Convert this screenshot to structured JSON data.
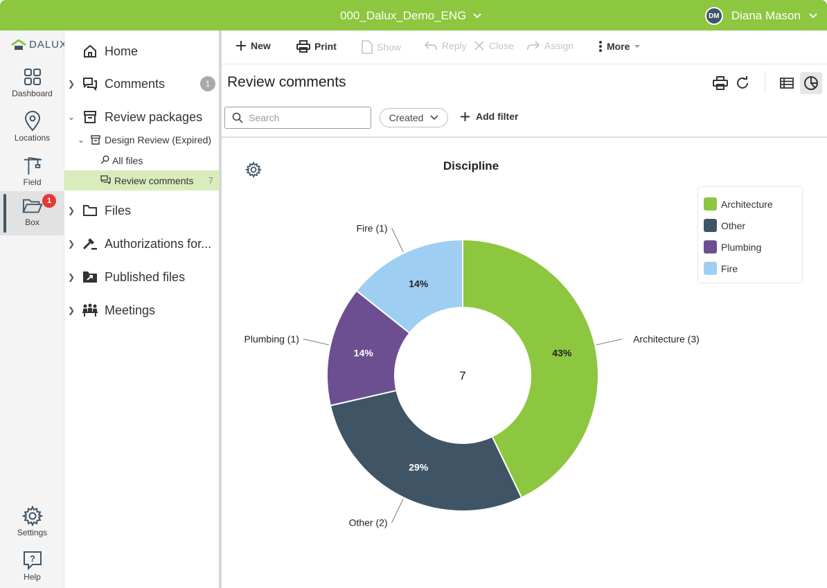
{
  "topbar": {
    "project": "000_Dalux_Demo_ENG",
    "user_name": "Diana Mason",
    "user_initials": "DM"
  },
  "rail": {
    "logo": "DALUX",
    "items": [
      {
        "label": "Dashboard",
        "icon": "dashboard-grid-icon"
      },
      {
        "label": "Locations",
        "icon": "location-pin-icon"
      },
      {
        "label": "Field",
        "icon": "crane-icon"
      },
      {
        "label": "Box",
        "icon": "folder-open-icon",
        "badge": "1"
      },
      {
        "label": "Settings",
        "icon": "gear-icon"
      },
      {
        "label": "Help",
        "icon": "help-icon"
      }
    ]
  },
  "nav": {
    "home": "Home",
    "comments": "Comments",
    "comments_count": "1",
    "review_packages": "Review packages",
    "design_review": "Design Review (Expired)",
    "all_files": "All files",
    "review_comments": "Review comments",
    "review_comments_count": "7",
    "files": "Files",
    "authorizations": "Authorizations for...",
    "published_files": "Published files",
    "meetings": "Meetings"
  },
  "toolbar": {
    "new": "New",
    "print": "Print",
    "show": "Show",
    "reply": "Reply",
    "close": "Close",
    "assign": "Assign",
    "more": "More"
  },
  "page": {
    "title": "Review comments"
  },
  "filters": {
    "search_placeholder": "Search",
    "created": "Created",
    "add_filter": "Add filter"
  },
  "colors": {
    "brand": "#8dc63f",
    "architecture": "#8dc63f",
    "other": "#3f5566",
    "plumbing": "#6c4f91",
    "fire": "#9ecff3"
  },
  "chart_data": {
    "type": "pie",
    "title": "Discipline",
    "center_total": "7",
    "slices": [
      {
        "name": "Architecture",
        "value": 3,
        "percent_label": "43%",
        "callout": "Architecture (3)",
        "color": "#8dc63f"
      },
      {
        "name": "Other",
        "value": 2,
        "percent_label": "29%",
        "callout": "Other (2)",
        "color": "#3f5566"
      },
      {
        "name": "Plumbing",
        "value": 1,
        "percent_label": "14%",
        "callout": "Plumbing (1)",
        "color": "#6c4f91"
      },
      {
        "name": "Fire",
        "value": 1,
        "percent_label": "14%",
        "callout": "Fire (1)",
        "color": "#9ecff3"
      }
    ],
    "legend": [
      "Architecture",
      "Other",
      "Plumbing",
      "Fire"
    ],
    "legend_position": "top-right"
  }
}
